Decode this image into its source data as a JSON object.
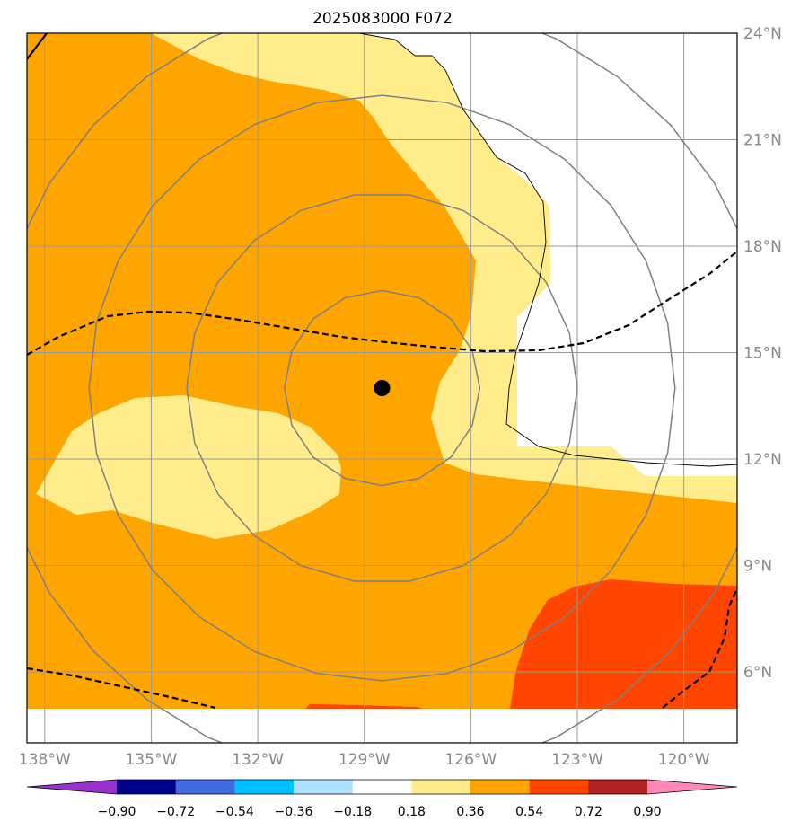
{
  "title": "2025083000 F072",
  "map": {
    "lon_range": [
      -138.5,
      -118.5
    ],
    "lat_range": [
      4.0,
      24.0
    ],
    "lon_ticks": [
      {
        "lon": -138,
        "label": "138°W"
      },
      {
        "lon": -135,
        "label": "135°W"
      },
      {
        "lon": -132,
        "label": "132°W"
      },
      {
        "lon": -129,
        "label": "129°W"
      },
      {
        "lon": -126,
        "label": "126°W"
      },
      {
        "lon": -123,
        "label": "123°W"
      },
      {
        "lon": -120,
        "label": "120°W"
      }
    ],
    "lat_ticks": [
      {
        "lat": 24,
        "label": "24°N"
      },
      {
        "lat": 21,
        "label": "21°N"
      },
      {
        "lat": 18,
        "label": "18°N"
      },
      {
        "lat": 15,
        "label": "15°N"
      },
      {
        "lat": 12,
        "label": "12°N"
      },
      {
        "lat": 9,
        "label": "9°N"
      },
      {
        "lat": 6,
        "label": "6°N"
      }
    ],
    "storm_center": {
      "lon": -128.5,
      "lat": 14.0
    },
    "range_ring_radii_deg": [
      2.75,
      5.5,
      8.25,
      11.0
    ]
  },
  "colorbar": {
    "levels": [
      "−0.90",
      "−0.72",
      "−0.54",
      "−0.36",
      "−0.18",
      "0.18",
      "0.36",
      "0.54",
      "0.72",
      "0.90"
    ],
    "colors": [
      "#9932cc",
      "#00008b",
      "#4169e1",
      "#00bfff",
      "#b0e0ff",
      "#ffffff",
      "#ffec8b",
      "#ffa500",
      "#ff4500",
      "#b22222",
      "#ff88b8"
    ]
  },
  "field_colors": {
    "light_yellow": "#ffec8b",
    "orange": "#ffa500",
    "red_orange": "#ff4500",
    "white": "#ffffff"
  }
}
